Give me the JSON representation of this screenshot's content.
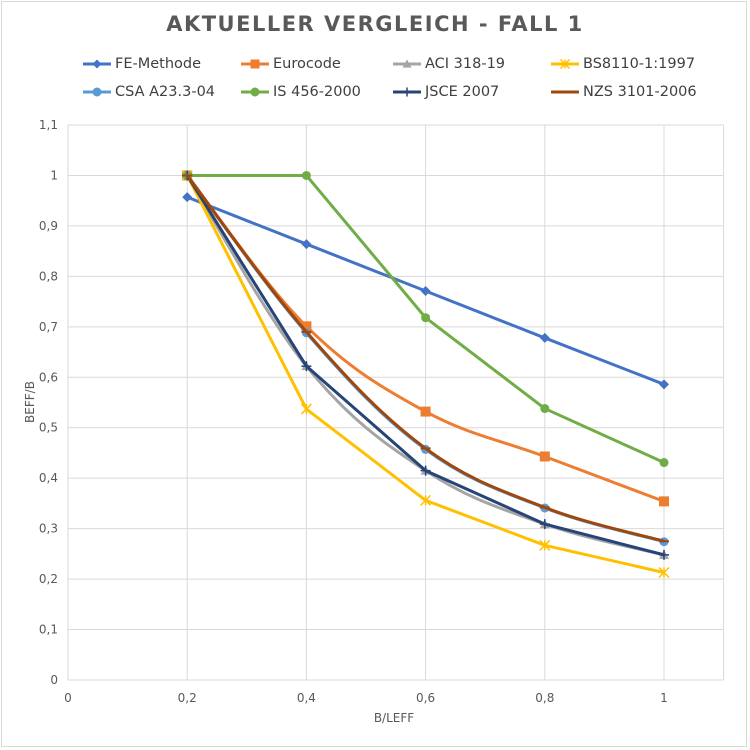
{
  "chart_data": {
    "type": "line",
    "title": "AKTUELLER VERGLEICH - FALL 1",
    "xlabel": "B/LEFF",
    "ylabel": "BEFF/B",
    "xlim": [
      0,
      1.1
    ],
    "ylim": [
      0,
      1.1
    ],
    "x_ticks": [
      "0",
      "0,2",
      "0,4",
      "0,6",
      "0,8",
      "1"
    ],
    "y_ticks": [
      "0",
      "0,1",
      "0,2",
      "0,3",
      "0,4",
      "0,5",
      "0,6",
      "0,7",
      "0,8",
      "0,9",
      "1",
      "1,1"
    ],
    "grid": true,
    "legend_position": "top",
    "x": [
      0.2,
      0.4,
      0.6,
      0.8,
      1.0
    ],
    "series": [
      {
        "name": "FE-Methode",
        "color": "#4472c4",
        "marker": "diamond",
        "values": [
          0.957,
          0.864,
          0.771,
          0.678,
          0.586
        ],
        "smooth": false
      },
      {
        "name": "Eurocode",
        "color": "#ed7d31",
        "marker": "square",
        "values": [
          1.0,
          0.701,
          0.532,
          0.443,
          0.354
        ],
        "smooth": true
      },
      {
        "name": "ACI 318-19",
        "color": "#a5a5a5",
        "marker": "triangle",
        "values": [
          1.0,
          0.622,
          0.415,
          0.309,
          0.248
        ],
        "smooth": true
      },
      {
        "name": "BS8110-1:1997",
        "color": "#ffc000",
        "marker": "star",
        "values": [
          1.0,
          0.537,
          0.356,
          0.267,
          0.213
        ],
        "smooth": false
      },
      {
        "name": "CSA A23.3-04",
        "color": "#5b9bd5",
        "marker": "circle",
        "values": [
          1.0,
          0.688,
          0.457,
          0.341,
          0.274
        ],
        "smooth": true
      },
      {
        "name": "IS 456-2000",
        "color": "#70ad47",
        "marker": "circle",
        "values": [
          1.0,
          1.0,
          0.718,
          0.538,
          0.431
        ],
        "smooth": false
      },
      {
        "name": "JSCE 2007",
        "color": "#264478",
        "marker": "plus",
        "values": [
          1.0,
          0.622,
          0.415,
          0.309,
          0.248
        ],
        "smooth": false
      },
      {
        "name": "NZS 3101-2006",
        "color": "#9e480e",
        "marker": "dash",
        "values": [
          1.0,
          0.69,
          0.459,
          0.342,
          0.275
        ],
        "smooth": true
      }
    ]
  }
}
